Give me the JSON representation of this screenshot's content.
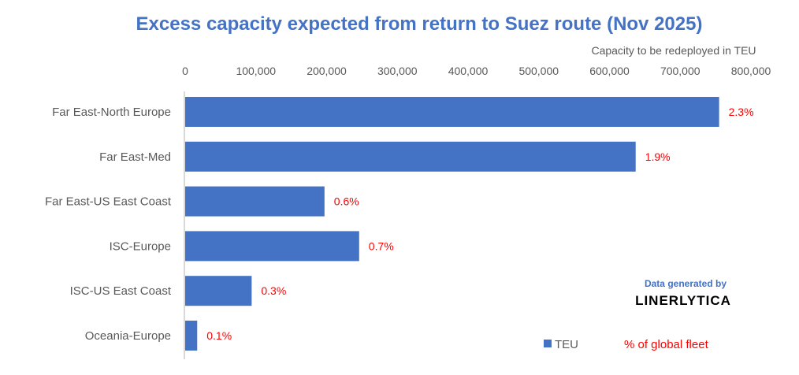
{
  "chart_data": {
    "type": "bar",
    "orientation": "horizontal",
    "title": "Excess capacity expected from return to Suez route (Nov 2025)",
    "xlabel": "Capacity to be redeployed in TEU",
    "ylabel": "",
    "xlim": [
      0,
      800000
    ],
    "x_ticks": [
      0,
      100000,
      200000,
      300000,
      400000,
      500000,
      600000,
      700000,
      800000
    ],
    "x_tick_labels": [
      "0",
      "100,000",
      "200,000",
      "300,000",
      "400,000",
      "500,000",
      "600,000",
      "700,000",
      "800,000"
    ],
    "x_axis_position": "top",
    "grid": false,
    "categories": [
      "Far East-North Europe",
      "Far East-Med",
      "Far East-US East Coast",
      "ISC-Europe",
      "ISC-US East Coast",
      "Oceania-Europe"
    ],
    "series": [
      {
        "name": "TEU",
        "color": "#4472c4",
        "values": [
          755000,
          637000,
          197000,
          246000,
          94000,
          17000
        ]
      },
      {
        "name": "% of global fleet",
        "color": "#ff0000",
        "labels": [
          "2.3%",
          "1.9%",
          "0.6%",
          "0.7%",
          "0.3%",
          "0.1%"
        ],
        "values": [
          2.3,
          1.9,
          0.6,
          0.7,
          0.3,
          0.1
        ]
      }
    ],
    "legend": {
      "position": "bottom-right",
      "entries": [
        "TEU",
        "% of global fleet"
      ]
    }
  },
  "credit": {
    "line1": "Data generated by",
    "line2": "LINERLYTICA"
  }
}
